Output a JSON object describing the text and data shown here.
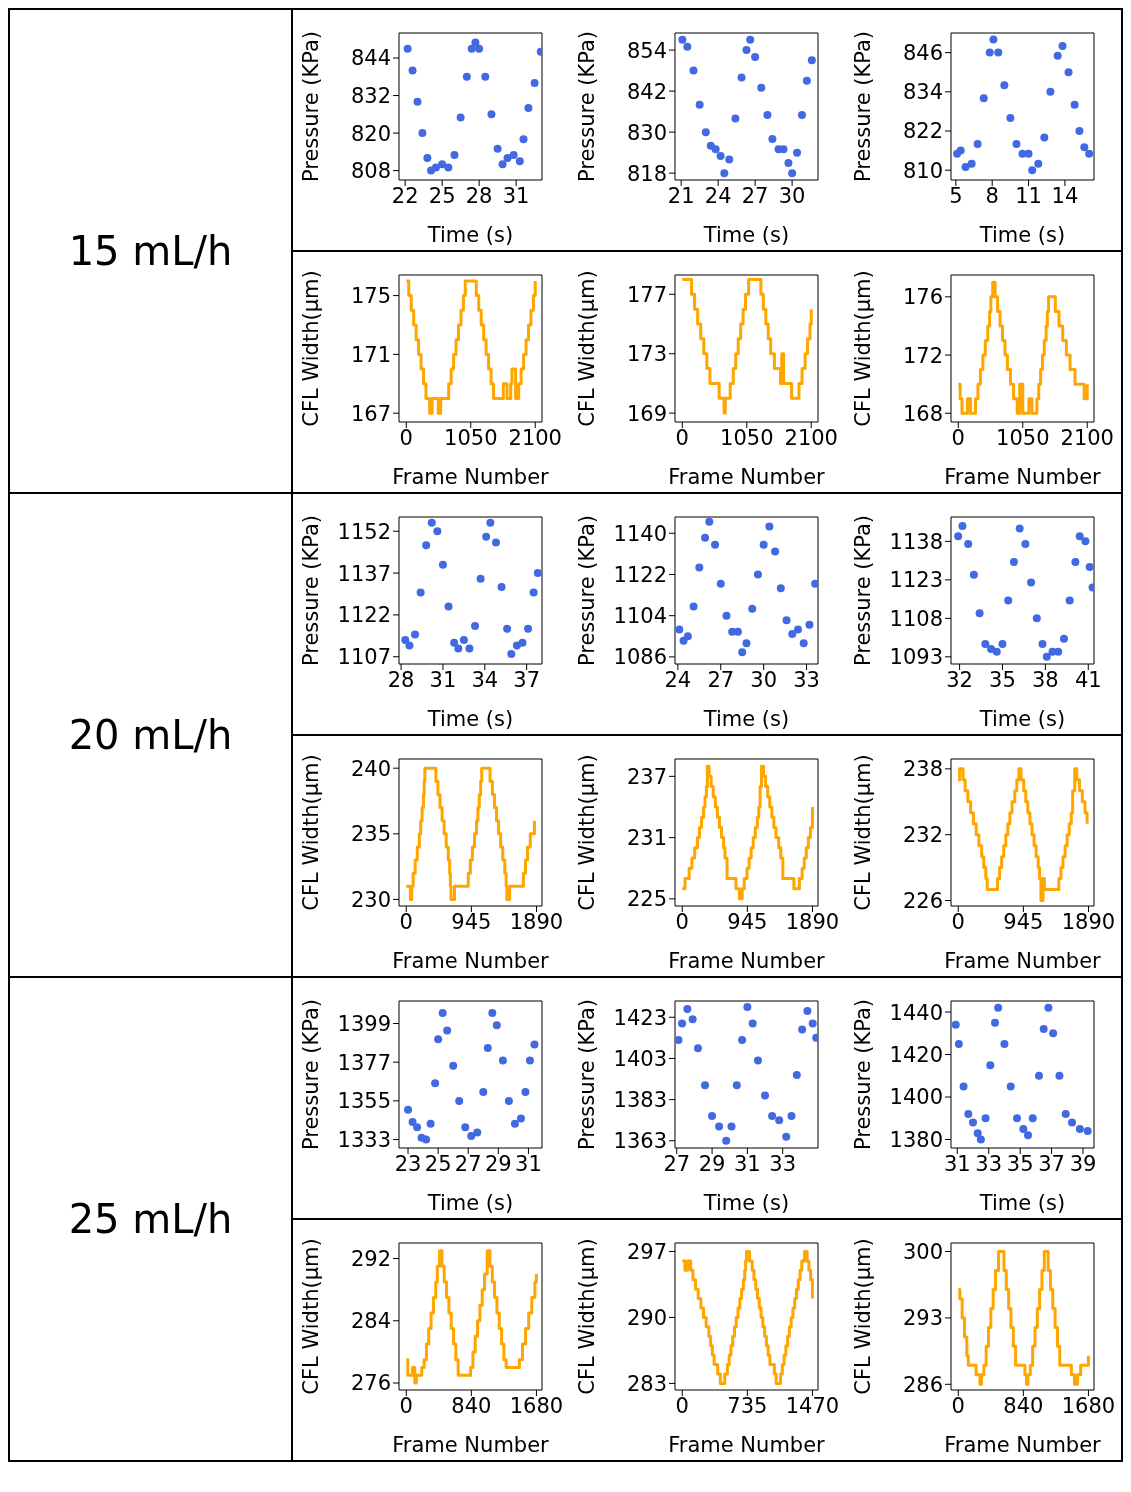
{
  "chart_data": [
    {
      "type": "other",
      "title": "15 mL/h"
    },
    {
      "type": "scatter",
      "xlabel": "Time (s)",
      "ylabel": "Pressure (KPa)",
      "color": "#4169e1",
      "marker": "circle",
      "xlim": [
        21.5,
        33.1
      ],
      "ylim": [
        805,
        852
      ],
      "xticks": [
        22,
        25,
        28,
        31
      ],
      "yticks": [
        808,
        820,
        832,
        844
      ],
      "x": [
        22.2,
        22.6,
        23,
        23.4,
        23.8,
        24.1,
        24.5,
        25,
        25.5,
        26,
        26.5,
        27,
        27.4,
        27.7,
        28,
        28.5,
        29,
        29.5,
        29.9,
        30.3,
        30.8,
        31.3,
        31.6,
        32,
        32.5,
        33
      ],
      "values": [
        847,
        840,
        830,
        820,
        812,
        808,
        809,
        810,
        809,
        813,
        825,
        838,
        847,
        849,
        847,
        838,
        826,
        815,
        810,
        812,
        813,
        811,
        818,
        828,
        836,
        846
      ]
    },
    {
      "type": "scatter",
      "xlabel": "Time (s)",
      "ylabel": "Pressure (KPa)",
      "color": "#4169e1",
      "marker": "circle",
      "xlim": [
        20.5,
        32.1
      ],
      "ylim": [
        816,
        859
      ],
      "xticks": [
        21,
        24,
        27,
        30
      ],
      "yticks": [
        818,
        830,
        842,
        854
      ],
      "x": [
        21.1,
        21.5,
        22,
        22.5,
        23,
        23.4,
        23.8,
        24.2,
        24.5,
        24.9,
        25.4,
        25.9,
        26.3,
        26.6,
        27,
        27.5,
        28,
        28.4,
        28.9,
        29.3,
        29.7,
        30,
        30.4,
        30.8,
        31.2,
        31.6
      ],
      "values": [
        857,
        855,
        848,
        838,
        830,
        826,
        825,
        823,
        818,
        822,
        834,
        846,
        854,
        857,
        852,
        843,
        835,
        828,
        825,
        825,
        821,
        818,
        824,
        835,
        845,
        851
      ]
    },
    {
      "type": "scatter",
      "xlabel": "Time (s)",
      "ylabel": "Pressure (KPa)",
      "color": "#4169e1",
      "marker": "circle",
      "xlim": [
        4.6,
        16.4
      ],
      "ylim": [
        807,
        852
      ],
      "xticks": [
        5,
        8,
        11,
        14
      ],
      "yticks": [
        810,
        822,
        834,
        846
      ],
      "x": [
        5.1,
        5.4,
        5.8,
        6.3,
        6.8,
        7.3,
        7.8,
        8.1,
        8.5,
        9,
        9.5,
        10,
        10.5,
        11,
        11.3,
        11.8,
        12.3,
        12.8,
        13.4,
        13.8,
        14.3,
        14.8,
        15.2,
        15.6,
        16
      ],
      "values": [
        815,
        816,
        811,
        812,
        818,
        832,
        846,
        850,
        846,
        836,
        826,
        818,
        815,
        815,
        810,
        812,
        820,
        834,
        845,
        848,
        840,
        830,
        822,
        817,
        815
      ]
    },
    {
      "type": "step",
      "xlabel": "Frame Number",
      "ylabel": "CFL Width(μm)",
      "color": "#ffa500",
      "xlim": [
        -119,
        2210
      ],
      "ylim": [
        166.4,
        176.4
      ],
      "xticks": [
        0,
        1050,
        2100
      ],
      "yticks": [
        167,
        171,
        175
      ],
      "x": [
        0,
        40,
        80,
        120,
        160,
        200,
        240,
        280,
        320,
        380,
        420,
        520,
        560,
        690,
        730,
        770,
        810,
        850,
        890,
        930,
        960,
        1140,
        1180,
        1220,
        1260,
        1300,
        1340,
        1380,
        1420,
        1580,
        1640,
        1700,
        1720,
        1780,
        1830,
        1870,
        1910,
        1950,
        1990,
        2030,
        2070,
        2100
      ],
      "values": [
        176,
        175,
        174,
        173,
        172,
        171,
        170,
        169,
        168,
        167,
        168,
        167,
        168,
        169,
        170,
        171,
        172,
        173,
        174,
        175,
        176,
        175,
        174,
        173,
        172,
        171,
        170,
        169,
        168,
        169,
        168,
        169,
        170,
        168,
        169,
        170,
        171,
        172,
        173,
        174,
        175,
        176
      ]
    },
    {
      "type": "step",
      "xlabel": "Frame Number",
      "ylabel": "CFL Width(μm)",
      "color": "#ffa500",
      "xlim": [
        -119,
        2210
      ],
      "ylim": [
        168.4,
        178.3
      ],
      "xticks": [
        0,
        1050,
        2100
      ],
      "yticks": [
        169,
        173,
        177
      ],
      "x": [
        0,
        150,
        200,
        250,
        300,
        350,
        400,
        450,
        600,
        680,
        700,
        780,
        830,
        870,
        910,
        950,
        990,
        1030,
        1080,
        1280,
        1320,
        1360,
        1400,
        1440,
        1500,
        1600,
        1620,
        1650,
        1780,
        1900,
        1950,
        2000,
        2040,
        2080,
        2100
      ],
      "values": [
        178,
        177,
        176,
        175,
        174,
        173,
        172,
        171,
        170,
        169,
        170,
        171,
        172,
        173,
        174,
        175,
        176,
        177,
        178,
        177,
        176,
        175,
        174,
        173,
        172,
        171,
        173,
        171,
        170,
        171,
        172,
        173,
        174,
        175,
        176
      ]
    },
    {
      "type": "step",
      "xlabel": "Frame Number",
      "ylabel": "CFL Width(μm)",
      "color": "#ffa500",
      "xlim": [
        -119,
        2210
      ],
      "ylim": [
        167.4,
        177.5
      ],
      "xticks": [
        0,
        1050,
        2100
      ],
      "yticks": [
        168,
        172,
        176
      ],
      "x": [
        0,
        30,
        60,
        150,
        200,
        280,
        320,
        360,
        400,
        440,
        480,
        510,
        530,
        560,
        600,
        640,
        680,
        720,
        760,
        800,
        850,
        900,
        960,
        1000,
        1050,
        1150,
        1200,
        1280,
        1310,
        1340,
        1370,
        1400,
        1430,
        1450,
        1470,
        1580,
        1640,
        1700,
        1760,
        1820,
        1900,
        2050,
        2100
      ],
      "values": [
        170,
        169,
        168,
        169,
        168,
        169,
        170,
        171,
        172,
        173,
        174,
        175,
        176,
        177,
        176,
        175,
        174,
        173,
        172,
        171,
        170,
        169,
        168,
        170,
        168,
        169,
        168,
        169,
        170,
        171,
        172,
        173,
        174,
        175,
        176,
        175,
        174,
        173,
        172,
        171,
        170,
        169,
        170
      ]
    },
    {
      "type": "other",
      "title": "20 mL/h"
    },
    {
      "type": "scatter",
      "xlabel": "Time (s)",
      "ylabel": "Pressure (KPa)",
      "color": "#4169e1",
      "marker": "circle",
      "xlim": [
        27.85,
        38.1
      ],
      "ylim": [
        1104.4,
        1157.1
      ],
      "xticks": [
        28,
        31,
        34,
        37
      ],
      "yticks": [
        1107,
        1122,
        1137,
        1152
      ],
      "x": [
        28.3,
        28.6,
        29,
        29.4,
        29.8,
        30.2,
        30.6,
        31,
        31.4,
        31.8,
        32.1,
        32.5,
        32.9,
        33.3,
        33.7,
        34.1,
        34.4,
        34.8,
        35.2,
        35.6,
        35.9,
        36.3,
        36.7,
        37.1,
        37.5,
        37.8
      ],
      "values": [
        1113,
        1111,
        1115,
        1130,
        1147,
        1155,
        1152,
        1140,
        1125,
        1112,
        1110,
        1113,
        1110,
        1118,
        1135,
        1150,
        1155,
        1148,
        1132,
        1117,
        1108,
        1111,
        1112,
        1117,
        1130,
        1137
      ]
    },
    {
      "type": "scatter",
      "xlabel": "Time (s)",
      "ylabel": "Pressure (KPa)",
      "color": "#4169e1",
      "marker": "circle",
      "xlim": [
        23.8,
        33.8
      ],
      "ylim": [
        1082.9,
        1147.1
      ],
      "xticks": [
        24,
        27,
        30,
        33
      ],
      "yticks": [
        1086,
        1104,
        1122,
        1140
      ],
      "x": [
        24.1,
        24.4,
        24.7,
        25.1,
        25.5,
        25.9,
        26.2,
        26.6,
        27,
        27.4,
        27.8,
        28.2,
        28.5,
        28.8,
        29.2,
        29.6,
        30,
        30.4,
        30.8,
        31.2,
        31.6,
        32,
        32.4,
        32.8,
        33.2,
        33.6
      ],
      "values": [
        1098,
        1093,
        1095,
        1108,
        1125,
        1138,
        1145,
        1135,
        1118,
        1104,
        1097,
        1097,
        1088,
        1092,
        1107,
        1122,
        1135,
        1143,
        1132,
        1116,
        1102,
        1096,
        1098,
        1092,
        1100,
        1118
      ]
    },
    {
      "type": "scatter",
      "xlabel": "Time (s)",
      "ylabel": "Pressure (KPa)",
      "color": "#4169e1",
      "marker": "circle",
      "xlim": [
        31.4,
        41.4
      ],
      "ylim": [
        1090.2,
        1147.5
      ],
      "xticks": [
        32,
        35,
        38,
        41
      ],
      "yticks": [
        1093,
        1108,
        1123,
        1138
      ],
      "x": [
        31.9,
        32.2,
        32.6,
        33,
        33.4,
        33.8,
        34.2,
        34.6,
        35,
        35.4,
        35.8,
        36.2,
        36.6,
        37,
        37.4,
        37.8,
        38.1,
        38.5,
        38.9,
        39.3,
        39.7,
        40.1,
        40.4,
        40.8,
        41.1,
        41.3
      ],
      "values": [
        1140,
        1144,
        1137,
        1125,
        1110,
        1098,
        1096,
        1095,
        1098,
        1115,
        1130,
        1143,
        1137,
        1122,
        1108,
        1098,
        1093,
        1095,
        1095,
        1100,
        1115,
        1130,
        1140,
        1138,
        1128,
        1120
      ]
    },
    {
      "type": "step",
      "xlabel": "Frame Number",
      "ylabel": "CFL Width(μm)",
      "color": "#ffa500",
      "xlim": [
        -105,
        1970
      ],
      "ylim": [
        229.5,
        240.7
      ],
      "xticks": [
        0,
        945,
        1890
      ],
      "yticks": [
        230,
        235,
        240
      ],
      "x": [
        0,
        60,
        80,
        100,
        130,
        160,
        190,
        210,
        230,
        250,
        260,
        270,
        430,
        460,
        490,
        520,
        550,
        580,
        610,
        630,
        640,
        650,
        700,
        900,
        930,
        960,
        990,
        1020,
        1040,
        1060,
        1080,
        1095,
        1216,
        1250,
        1280,
        1310,
        1340,
        1370,
        1400,
        1430,
        1450,
        1460,
        1500,
        1700,
        1730,
        1760,
        1800,
        1860
      ],
      "values": [
        231,
        230,
        231,
        232,
        233,
        234,
        235,
        236,
        237,
        238,
        239,
        240,
        239,
        238,
        237,
        236,
        235,
        234,
        233,
        232,
        231,
        230,
        231,
        232,
        233,
        234,
        235,
        236,
        237,
        238,
        239,
        240,
        239,
        238,
        237,
        236,
        235,
        234,
        233,
        232,
        231,
        230,
        231,
        232,
        233,
        234,
        235,
        236
      ]
    },
    {
      "type": "step",
      "xlabel": "Frame Number",
      "ylabel": "CFL Width(μm)",
      "color": "#ffa500",
      "xlim": [
        -105,
        1970
      ],
      "ylim": [
        224.3,
        238.7
      ],
      "xticks": [
        0,
        945,
        1890
      ],
      "yticks": [
        225,
        231,
        237
      ],
      "x": [
        0,
        40,
        100,
        140,
        180,
        220,
        250,
        280,
        310,
        330,
        350,
        365,
        390,
        420,
        450,
        480,
        510,
        540,
        570,
        600,
        620,
        650,
        780,
        830,
        870,
        900,
        940,
        970,
        1000,
        1030,
        1060,
        1090,
        1110,
        1130,
        1150,
        1180,
        1210,
        1240,
        1270,
        1300,
        1330,
        1360,
        1400,
        1430,
        1460,
        1620,
        1700,
        1740,
        1770,
        1800,
        1830,
        1860,
        1890
      ],
      "values": [
        226,
        227,
        228,
        229,
        230,
        231,
        232,
        233,
        234,
        235,
        236,
        238,
        237,
        236,
        235,
        234,
        233,
        232,
        231,
        230,
        229,
        227,
        226,
        225,
        226,
        227,
        228,
        229,
        230,
        231,
        232,
        233,
        234,
        236,
        238,
        237,
        236,
        235,
        234,
        233,
        232,
        231,
        230,
        229,
        227,
        226,
        227,
        228,
        229,
        230,
        231,
        232,
        234
      ]
    },
    {
      "type": "step",
      "xlabel": "Frame Number",
      "ylabel": "CFL Width(μm)",
      "color": "#ffa500",
      "xlim": [
        -105,
        1970
      ],
      "ylim": [
        225.5,
        238.9
      ],
      "xticks": [
        0,
        945,
        1890
      ],
      "yticks": [
        226,
        232,
        238
      ],
      "x": [
        0,
        20,
        70,
        100,
        140,
        180,
        220,
        260,
        300,
        340,
        370,
        400,
        420,
        570,
        600,
        630,
        660,
        690,
        720,
        750,
        780,
        820,
        850,
        880,
        910,
        950,
        980,
        1010,
        1040,
        1070,
        1100,
        1130,
        1160,
        1180,
        1200,
        1230,
        1250,
        1460,
        1490,
        1520,
        1550,
        1580,
        1610,
        1640,
        1660,
        1690,
        1720,
        1760,
        1800,
        1840,
        1870
      ],
      "values": [
        237,
        238,
        237,
        236,
        235,
        234,
        233,
        232,
        231,
        230,
        229,
        228,
        227,
        228,
        229,
        230,
        231,
        232,
        233,
        234,
        235,
        236,
        237,
        238,
        237,
        236,
        235,
        234,
        233,
        232,
        231,
        230,
        229,
        228,
        226,
        228,
        227,
        228,
        229,
        230,
        231,
        232,
        233,
        234,
        236,
        238,
        237,
        236,
        235,
        234,
        233
      ]
    },
    {
      "type": "other",
      "title": "25 mL/h"
    },
    {
      "type": "scatter",
      "xlabel": "Time (s)",
      "ylabel": "Pressure (KPa)",
      "color": "#4169e1",
      "marker": "circle",
      "xlim": [
        22.4,
        31.9
      ],
      "ylim": [
        1328.2,
        1411.8
      ],
      "xticks": [
        23,
        25,
        27,
        29,
        31
      ],
      "yticks": [
        1333,
        1355,
        1377,
        1399
      ],
      "x": [
        23,
        23.3,
        23.6,
        23.9,
        24.2,
        24.5,
        24.8,
        25,
        25.3,
        25.6,
        26,
        26.4,
        26.8,
        27.2,
        27.6,
        28,
        28.3,
        28.6,
        28.9,
        29.3,
        29.7,
        30.1,
        30.5,
        30.8,
        31.1,
        31.4
      ],
      "values": [
        1350,
        1343,
        1340,
        1334,
        1333,
        1342,
        1365,
        1390,
        1405,
        1395,
        1375,
        1355,
        1340,
        1335,
        1337,
        1360,
        1385,
        1405,
        1398,
        1378,
        1355,
        1342,
        1345,
        1360,
        1378,
        1387
      ]
    },
    {
      "type": "scatter",
      "xlabel": "Time (s)",
      "ylabel": "Pressure (KPa)",
      "color": "#4169e1",
      "marker": "circle",
      "xlim": [
        26.9,
        35
      ],
      "ylim": [
        1359.5,
        1430.9
      ],
      "xticks": [
        27,
        29,
        31,
        33
      ],
      "yticks": [
        1363,
        1383,
        1403,
        1423
      ],
      "x": [
        27.1,
        27.3,
        27.6,
        27.9,
        28.2,
        28.6,
        29,
        29.4,
        29.8,
        30.1,
        30.4,
        30.7,
        31,
        31.3,
        31.6,
        32,
        32.4,
        32.8,
        33.2,
        33.5,
        33.8,
        34.1,
        34.4,
        34.7,
        34.9
      ],
      "values": [
        1412,
        1420,
        1427,
        1422,
        1408,
        1390,
        1375,
        1370,
        1363,
        1370,
        1390,
        1412,
        1428,
        1420,
        1402,
        1385,
        1375,
        1373,
        1365,
        1375,
        1395,
        1417,
        1426,
        1420,
        1413
      ]
    },
    {
      "type": "scatter",
      "xlabel": "Time (s)",
      "ylabel": "Pressure (KPa)",
      "color": "#4169e1",
      "marker": "circle",
      "xlim": [
        30.6,
        39.7
      ],
      "ylim": [
        1376,
        1445.2
      ],
      "xticks": [
        31,
        33,
        35,
        37,
        39
      ],
      "yticks": [
        1380,
        1400,
        1420,
        1440
      ],
      "x": [
        30.9,
        31.1,
        31.4,
        31.7,
        32,
        32.3,
        32.5,
        32.8,
        33.1,
        33.4,
        33.6,
        34,
        34.4,
        34.8,
        35.2,
        35.5,
        35.8,
        36.2,
        36.5,
        36.8,
        37.1,
        37.5,
        37.9,
        38.3,
        38.8,
        39.3
      ],
      "values": [
        1434,
        1425,
        1405,
        1392,
        1388,
        1383,
        1380,
        1390,
        1415,
        1435,
        1442,
        1425,
        1405,
        1390,
        1385,
        1382,
        1390,
        1410,
        1432,
        1442,
        1430,
        1410,
        1392,
        1388,
        1385,
        1384
      ]
    },
    {
      "type": "step",
      "xlabel": "Frame Number",
      "ylabel": "CFL Width(μm)",
      "color": "#ffa500",
      "xlim": [
        -94,
        1752
      ],
      "ylim": [
        275.1,
        294
      ],
      "xticks": [
        0,
        840,
        1680
      ],
      "yticks": [
        276,
        284,
        292
      ],
      "x": [
        0,
        20,
        80,
        110,
        130,
        200,
        230,
        260,
        290,
        320,
        350,
        380,
        400,
        430,
        460,
        490,
        520,
        550,
        580,
        610,
        640,
        670,
        830,
        860,
        890,
        920,
        950,
        980,
        1010,
        1045,
        1080,
        1110,
        1140,
        1170,
        1200,
        1230,
        1260,
        1290,
        1460,
        1500,
        1540,
        1580,
        1620,
        1660,
        1680
      ],
      "values": [
        279,
        277,
        278,
        276,
        277,
        278,
        279,
        281,
        283,
        285,
        287,
        289,
        291,
        293,
        291,
        289,
        287,
        285,
        283,
        281,
        279,
        277,
        278,
        280,
        282,
        284,
        286,
        288,
        290,
        293,
        291,
        289,
        287,
        285,
        283,
        281,
        279,
        278,
        279,
        281,
        283,
        285,
        287,
        289,
        290
      ]
    },
    {
      "type": "step",
      "xlabel": "Frame Number",
      "ylabel": "CFL Width(μm)",
      "color": "#ffa500",
      "xlim": [
        -82,
        1533
      ],
      "ylim": [
        282.3,
        297.9
      ],
      "xticks": [
        0,
        735,
        1470
      ],
      "yticks": [
        283,
        290,
        297
      ],
      "x": [
        0,
        30,
        60,
        95,
        120,
        150,
        180,
        210,
        240,
        270,
        300,
        320,
        340,
        360,
        400,
        430,
        480,
        510,
        530,
        550,
        570,
        590,
        610,
        630,
        650,
        670,
        690,
        705,
        715,
        725,
        760,
        790,
        810,
        830,
        850,
        870,
        890,
        910,
        930,
        950,
        970,
        990,
        1040,
        1060,
        1110,
        1130,
        1150,
        1170,
        1190,
        1210,
        1230,
        1250,
        1270,
        1290,
        1310,
        1330,
        1350,
        1380,
        1410,
        1430,
        1450,
        1470
      ],
      "values": [
        296,
        295,
        296,
        295,
        294,
        293,
        292,
        291,
        290,
        289,
        288,
        287,
        286,
        285,
        284,
        283,
        284,
        285,
        286,
        287,
        288,
        289,
        290,
        291,
        292,
        293,
        294,
        295,
        296,
        297,
        296,
        295,
        294,
        293,
        292,
        291,
        290,
        289,
        288,
        287,
        286,
        285,
        284,
        283,
        284,
        285,
        286,
        287,
        288,
        289,
        290,
        291,
        292,
        293,
        294,
        295,
        296,
        297,
        296,
        295,
        294,
        292
      ]
    },
    {
      "type": "step",
      "xlabel": "Frame Number",
      "ylabel": "CFL Width(μm)",
      "color": "#ffa500",
      "xlim": [
        -94,
        1752
      ],
      "ylim": [
        285.4,
        300.9
      ],
      "xticks": [
        0,
        840,
        1680
      ],
      "yticks": [
        286,
        293,
        300
      ],
      "x": [
        0,
        20,
        50,
        80,
        110,
        130,
        230,
        280,
        300,
        330,
        360,
        390,
        420,
        450,
        480,
        520,
        590,
        620,
        650,
        680,
        710,
        740,
        770,
        860,
        880,
        900,
        930,
        960,
        990,
        1020,
        1050,
        1080,
        1110,
        1160,
        1190,
        1220,
        1250,
        1280,
        1310,
        1340,
        1460,
        1500,
        1540,
        1580,
        1680
      ],
      "values": [
        296,
        295,
        293,
        291,
        289,
        288,
        287,
        286,
        287,
        288,
        290,
        292,
        294,
        296,
        298,
        300,
        298,
        296,
        294,
        292,
        290,
        288,
        288,
        287,
        286,
        287,
        288,
        290,
        292,
        294,
        296,
        298,
        300,
        298,
        296,
        294,
        292,
        290,
        288,
        288,
        287,
        286,
        287,
        288,
        289
      ]
    }
  ]
}
